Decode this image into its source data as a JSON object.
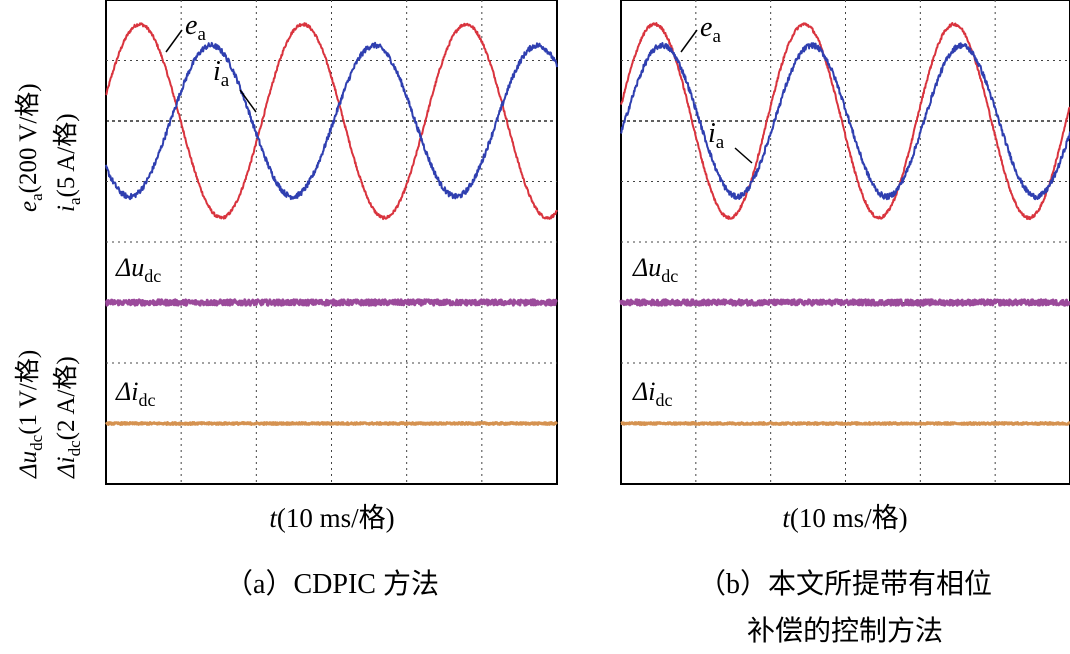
{
  "figure": {
    "panels": [
      {
        "id": "a",
        "caption_lines": [
          "（a）CDPIC 方法"
        ],
        "labels": {
          "ea": "e",
          "ea_sub": "a",
          "ia": "i",
          "ia_sub": "a",
          "dudc": "Δu",
          "dudc_sub": "dc",
          "didc": "Δi",
          "didc_sub": "dc"
        }
      },
      {
        "id": "b",
        "caption_lines": [
          "（b）本文所提带有相位",
          "补偿的控制方法"
        ],
        "labels": {
          "ea": "e",
          "ea_sub": "a",
          "ia": "i",
          "ia_sub": "a",
          "dudc": "Δu",
          "dudc_sub": "dc",
          "didc": "Δi",
          "didc_sub": "dc"
        }
      }
    ],
    "xlabel": {
      "var": "t",
      "rest": "(10 ms/格)"
    },
    "ylabel_top": [
      {
        "var": "e",
        "sub": "a",
        "rest": "(200 V/格)"
      },
      {
        "var": "i",
        "sub": "a",
        "rest": "(5 A/格)"
      }
    ],
    "ylabel_bottom": [
      {
        "var": "Δu",
        "sub": "dc",
        "rest": "(1 V/格)"
      },
      {
        "var": "Δi",
        "sub": "dc",
        "rest": "(2 A/格)"
      }
    ]
  },
  "chart_data": [
    {
      "type": "line",
      "panel": "a",
      "title": "（a）CDPIC 方法",
      "xlabel": "t(10 ms/格)",
      "x_divisions": 6,
      "y_divisions": 8,
      "grid": true,
      "series": [
        {
          "name": "e_a",
          "unit": "V",
          "divisions_per_unit": 200,
          "color": "#d9343e",
          "amplitude_div": 1.6,
          "period_div": 2.17,
          "peak_div_x": 0.45,
          "offset_div": 0
        },
        {
          "name": "i_a",
          "unit": "A",
          "divisions_per_unit": 5,
          "color": "#2f3fb0",
          "amplitude_div": 1.25,
          "period_div": 2.17,
          "peak_div_x": 1.4,
          "offset_div": 0
        },
        {
          "name": "Δu_dc",
          "unit": "V",
          "divisions_per_unit": 1,
          "color": "#9b4a9b",
          "constant_div": -3.0
        },
        {
          "name": "Δi_dc",
          "unit": "A",
          "divisions_per_unit": 2,
          "color": "#d59250",
          "constant_div": -5.0
        }
      ]
    },
    {
      "type": "line",
      "panel": "b",
      "title": "（b）本文所提带有相位补偿的控制方法",
      "xlabel": "t(10 ms/格)",
      "x_divisions": 6,
      "y_divisions": 8,
      "grid": true,
      "series": [
        {
          "name": "e_a",
          "unit": "V",
          "divisions_per_unit": 200,
          "color": "#d9343e",
          "amplitude_div": 1.6,
          "period_div": 2.0,
          "peak_div_x": 0.45,
          "offset_div": 0
        },
        {
          "name": "i_a",
          "unit": "A",
          "divisions_per_unit": 5,
          "color": "#2f3fb0",
          "amplitude_div": 1.25,
          "period_div": 2.0,
          "peak_div_x": 0.55,
          "offset_div": 0
        },
        {
          "name": "Δu_dc",
          "unit": "V",
          "divisions_per_unit": 1,
          "color": "#9b4a9b",
          "constant_div": -3.0
        },
        {
          "name": "Δi_dc",
          "unit": "A",
          "divisions_per_unit": 2,
          "color": "#d59250",
          "constant_div": -5.0
        }
      ]
    }
  ]
}
